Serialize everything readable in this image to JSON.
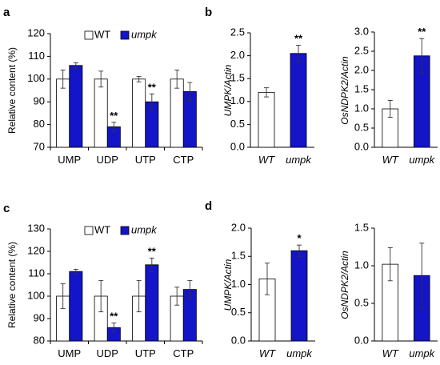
{
  "colors": {
    "wt_fill": "#ffffff",
    "mutant_fill": "#1414c8",
    "axis": "#000000",
    "error": "#333333"
  },
  "chart_data": [
    {
      "panel": "a",
      "type": "bar",
      "categories": [
        "UMP",
        "UDP",
        "UTP",
        "CTP"
      ],
      "ylabel": "Relative  content (%)",
      "ylim": [
        70,
        120
      ],
      "yticks": [
        70,
        80,
        90,
        100,
        110,
        120
      ],
      "legend": {
        "placement": "top-center",
        "entries": [
          "WT",
          "umpk"
        ]
      },
      "series": [
        {
          "name": "WT",
          "values": [
            100,
            100,
            100,
            100
          ],
          "errors": [
            4,
            3.5,
            1.2,
            4
          ]
        },
        {
          "name": "umpk",
          "values": [
            106,
            79,
            90,
            94.5
          ],
          "errors": [
            1.2,
            2,
            3.5,
            4
          ]
        }
      ],
      "annotations": [
        {
          "category": "UDP",
          "series": "umpk",
          "text": "**"
        },
        {
          "category": "UTP",
          "series": "umpk",
          "text": "**"
        }
      ]
    },
    {
      "panel": "b",
      "type": "bar",
      "categories": [
        "WT",
        "umpk"
      ],
      "ylabel": "UMPK/Actin",
      "ylim": [
        0,
        2.5
      ],
      "yticks": [
        "0.0",
        "0.5",
        "1.0",
        "1.5",
        "2.0",
        "2.5"
      ],
      "values": [
        1.2,
        2.05
      ],
      "errors": [
        0.1,
        0.18
      ],
      "annotations": [
        {
          "index": 1,
          "text": "**"
        }
      ]
    },
    {
      "panel": "b",
      "type": "bar",
      "categories": [
        "WT",
        "umpk"
      ],
      "ylabel": "OsNDPK2/Actin",
      "ylim": [
        0,
        3.0
      ],
      "yticks": [
        "0.0",
        "0.5",
        "1.0",
        "1.5",
        "2.0",
        "2.5",
        "3.0"
      ],
      "values": [
        1.0,
        2.38
      ],
      "errors": [
        0.22,
        0.45
      ],
      "annotations": [
        {
          "index": 1,
          "text": "**"
        }
      ]
    },
    {
      "panel": "c",
      "type": "bar",
      "categories": [
        "UMP",
        "UDP",
        "UTP",
        "CTP"
      ],
      "ylabel": "Relative  content (%)",
      "ylim": [
        80,
        130
      ],
      "yticks": [
        80,
        90,
        100,
        110,
        120,
        130
      ],
      "legend": {
        "placement": "top-center",
        "entries": [
          "WT",
          "umpk"
        ]
      },
      "series": [
        {
          "name": "WT",
          "values": [
            100,
            100,
            100,
            100
          ],
          "errors": [
            5.5,
            7,
            7,
            4
          ]
        },
        {
          "name": "umpk",
          "values": [
            111,
            86,
            114,
            103
          ],
          "errors": [
            1,
            2,
            3,
            4
          ]
        }
      ],
      "annotations": [
        {
          "category": "UDP",
          "series": "umpk",
          "text": "**"
        },
        {
          "category": "UTP",
          "series": "umpk",
          "text": "**"
        }
      ]
    },
    {
      "panel": "d",
      "type": "bar",
      "categories": [
        "WT",
        "umpk"
      ],
      "ylabel": "UMPK/Actin",
      "ylim": [
        0,
        2.0
      ],
      "yticks": [
        "0.0",
        "0.5",
        "1.0",
        "1.5",
        "2.0"
      ],
      "values": [
        1.1,
        1.6
      ],
      "errors": [
        0.28,
        0.1
      ],
      "annotations": [
        {
          "index": 1,
          "text": "*"
        }
      ]
    },
    {
      "panel": "d",
      "type": "bar",
      "categories": [
        "WT",
        "umpk"
      ],
      "ylabel": "OsNDPK2/Actin",
      "ylim": [
        0,
        1.5
      ],
      "yticks": [
        "0.0",
        "0.5",
        "1.0",
        "1.5"
      ],
      "values": [
        1.02,
        0.87
      ],
      "errors": [
        0.22,
        0.43
      ],
      "annotations": []
    }
  ]
}
